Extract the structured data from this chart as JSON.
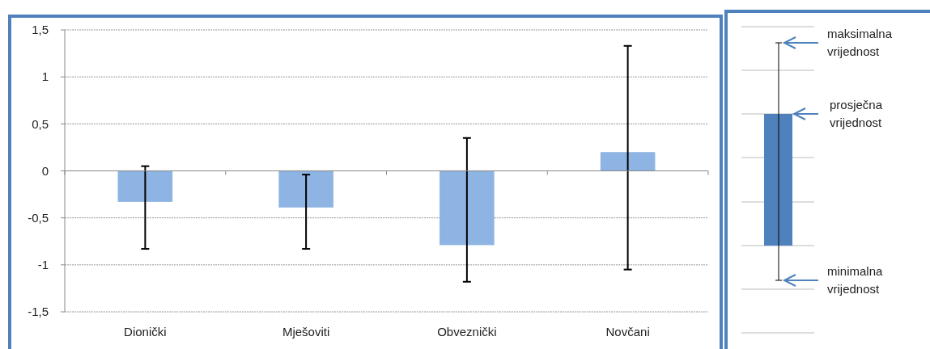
{
  "chart_data": {
    "type": "bar",
    "categories": [
      "Dionički",
      "Mješoviti",
      "Obveznički",
      "Novčani"
    ],
    "series": [
      {
        "color": "#8eb4e3",
        "values": [
          -0.33,
          -0.39,
          -0.79,
          0.2
        ],
        "errors": [
          [
            -0.83,
            0.05
          ],
          [
            -0.83,
            -0.04
          ],
          [
            -1.18,
            0.35
          ],
          [
            -1.05,
            1.33
          ]
        ]
      }
    ],
    "ylim": [
      -1.5,
      1.5
    ],
    "yticks": [
      {
        "value": -1.5,
        "label": "-1,5"
      },
      {
        "value": -1,
        "label": "-1"
      },
      {
        "value": -0.5,
        "label": "-0,5"
      },
      0,
      {
        "value": 0.5,
        "label": "0,5"
      },
      1,
      {
        "value": 1.5,
        "label": "1,5"
      }
    ],
    "grid": "y",
    "annotations": [
      "maksimalna vrijednost",
      "prosječna vrijednost",
      "minimalna vrijednost"
    ]
  }
}
